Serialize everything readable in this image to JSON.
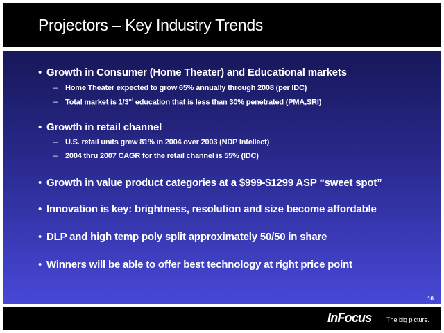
{
  "header": {
    "title": "Projectors – Key Industry Trends"
  },
  "bullets": [
    {
      "text": "Growth in Consumer (Home Theater) and Educational markets",
      "subs": [
        [
          "Home Theater expected to grow 65% annually through 2008 (per IDC)"
        ],
        [
          "Total market is 1/3",
          "rd",
          " education that is less than 30% penetrated (PMA,SRI)"
        ]
      ]
    },
    {
      "text": "Growth in retail channel",
      "subs": [
        [
          "U.S. retail units grew 81% in 2004 over 2003 (NDP Intellect)"
        ],
        [
          "2004 thru 2007 CAGR for the retail channel is 55% (IDC)"
        ]
      ]
    },
    {
      "text": "Growth in value product categories at a $999-$1299 ASP “sweet spot”",
      "subs": []
    },
    {
      "text": "Innovation is key: brightness, resolution and size become affordable",
      "subs": []
    },
    {
      "text": "DLP and high temp poly split approximately 50/50 in share",
      "subs": []
    },
    {
      "text": "Winners will be able to offer best technology at right price point",
      "subs": []
    }
  ],
  "page_number": "10",
  "footer": {
    "logo": "InFocus",
    "tagline": "The big picture."
  }
}
